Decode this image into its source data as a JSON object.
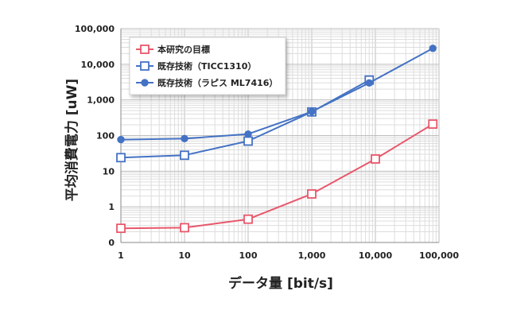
{
  "chart_data": {
    "type": "line",
    "xscale": "log",
    "yscale": "log",
    "xlabel": "データ量 [bit/s]",
    "ylabel": "平均消費電力 [uW]",
    "xlim": [
      1,
      100000
    ],
    "ylim": [
      0.1,
      100000
    ],
    "xticks": [
      {
        "v": 1,
        "label": "1"
      },
      {
        "v": 10,
        "label": "10"
      },
      {
        "v": 100,
        "label": "100"
      },
      {
        "v": 1000,
        "label": "1,000"
      },
      {
        "v": 10000,
        "label": "10,000"
      },
      {
        "v": 100000,
        "label": "100,000"
      }
    ],
    "yticks": [
      {
        "v": 0.1,
        "label": "0"
      },
      {
        "v": 1,
        "label": "1"
      },
      {
        "v": 10,
        "label": "10"
      },
      {
        "v": 100,
        "label": "100"
      },
      {
        "v": 1000,
        "label": "1,000"
      },
      {
        "v": 10000,
        "label": "10,000"
      },
      {
        "v": 100000,
        "label": "100,000"
      }
    ],
    "grid": true,
    "legend_position": "top-left",
    "series": [
      {
        "name": "本研究の目標",
        "color": "#e8576b",
        "marker": "square-open",
        "x": [
          1,
          10,
          100,
          1000,
          10000,
          80000
        ],
        "y": [
          0.25,
          0.26,
          0.45,
          2.3,
          22,
          210
        ]
      },
      {
        "name": "既存技術（TICC1310）",
        "color": "#4472c4",
        "marker": "square-open",
        "x": [
          1,
          10,
          100,
          1000,
          8000
        ],
        "y": [
          24,
          28,
          70,
          460,
          3600
        ]
      },
      {
        "name": "既存技術（ラピス ML7416）",
        "color": "#4472c4",
        "marker": "circle-filled",
        "x": [
          1,
          10,
          100,
          1000,
          8000,
          80000
        ],
        "y": [
          77,
          82,
          110,
          470,
          3000,
          28000
        ]
      }
    ]
  }
}
